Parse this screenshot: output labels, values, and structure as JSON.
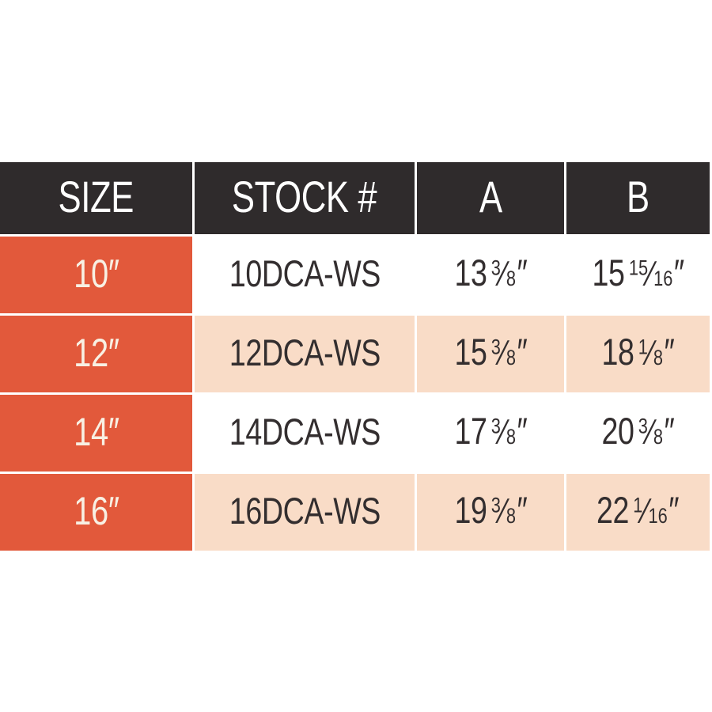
{
  "colors": {
    "header_bg": "#2f2b2c",
    "header_text": "#ffffff",
    "size_bg": "#e2593b",
    "size_text": "#f8f0e3",
    "row_bg": "#ffffff",
    "row_alt_bg": "#f9dcc7",
    "data_text": "#332e2f",
    "divider": "#ffffff"
  },
  "glyphs": {
    "fraction_slash": "⁄",
    "inch": "″"
  },
  "table": {
    "columns": [
      {
        "label": "SIZE"
      },
      {
        "label": "STOCK #"
      },
      {
        "label": "A"
      },
      {
        "label": "B"
      }
    ],
    "rows": [
      {
        "size": "10″",
        "stock": "10DCA-WS",
        "a": {
          "whole": "13",
          "num": "3",
          "den": "8"
        },
        "b": {
          "whole": "15",
          "num": "15",
          "den": "16"
        }
      },
      {
        "size": "12″",
        "stock": "12DCA-WS",
        "a": {
          "whole": "15",
          "num": "3",
          "den": "8"
        },
        "b": {
          "whole": "18",
          "num": "1",
          "den": "8"
        }
      },
      {
        "size": "14″",
        "stock": "14DCA-WS",
        "a": {
          "whole": "17",
          "num": "3",
          "den": "8"
        },
        "b": {
          "whole": "20",
          "num": "3",
          "den": "8"
        }
      },
      {
        "size": "16″",
        "stock": "16DCA-WS",
        "a": {
          "whole": "19",
          "num": "3",
          "den": "8"
        },
        "b": {
          "whole": "22",
          "num": "1",
          "den": "16"
        }
      }
    ]
  },
  "chart_data": {
    "type": "table",
    "columns": [
      "SIZE",
      "STOCK #",
      "A",
      "B"
    ],
    "rows": [
      [
        "10″",
        "10DCA-WS",
        "13 3/8″",
        "15 15/16″"
      ],
      [
        "12″",
        "12DCA-WS",
        "15 3/8″",
        "18 1/8″"
      ],
      [
        "14″",
        "14DCA-WS",
        "17 3/8″",
        "20 3/8″"
      ],
      [
        "16″",
        "16DCA-WS",
        "19 3/8″",
        "22 1/16″"
      ]
    ]
  }
}
